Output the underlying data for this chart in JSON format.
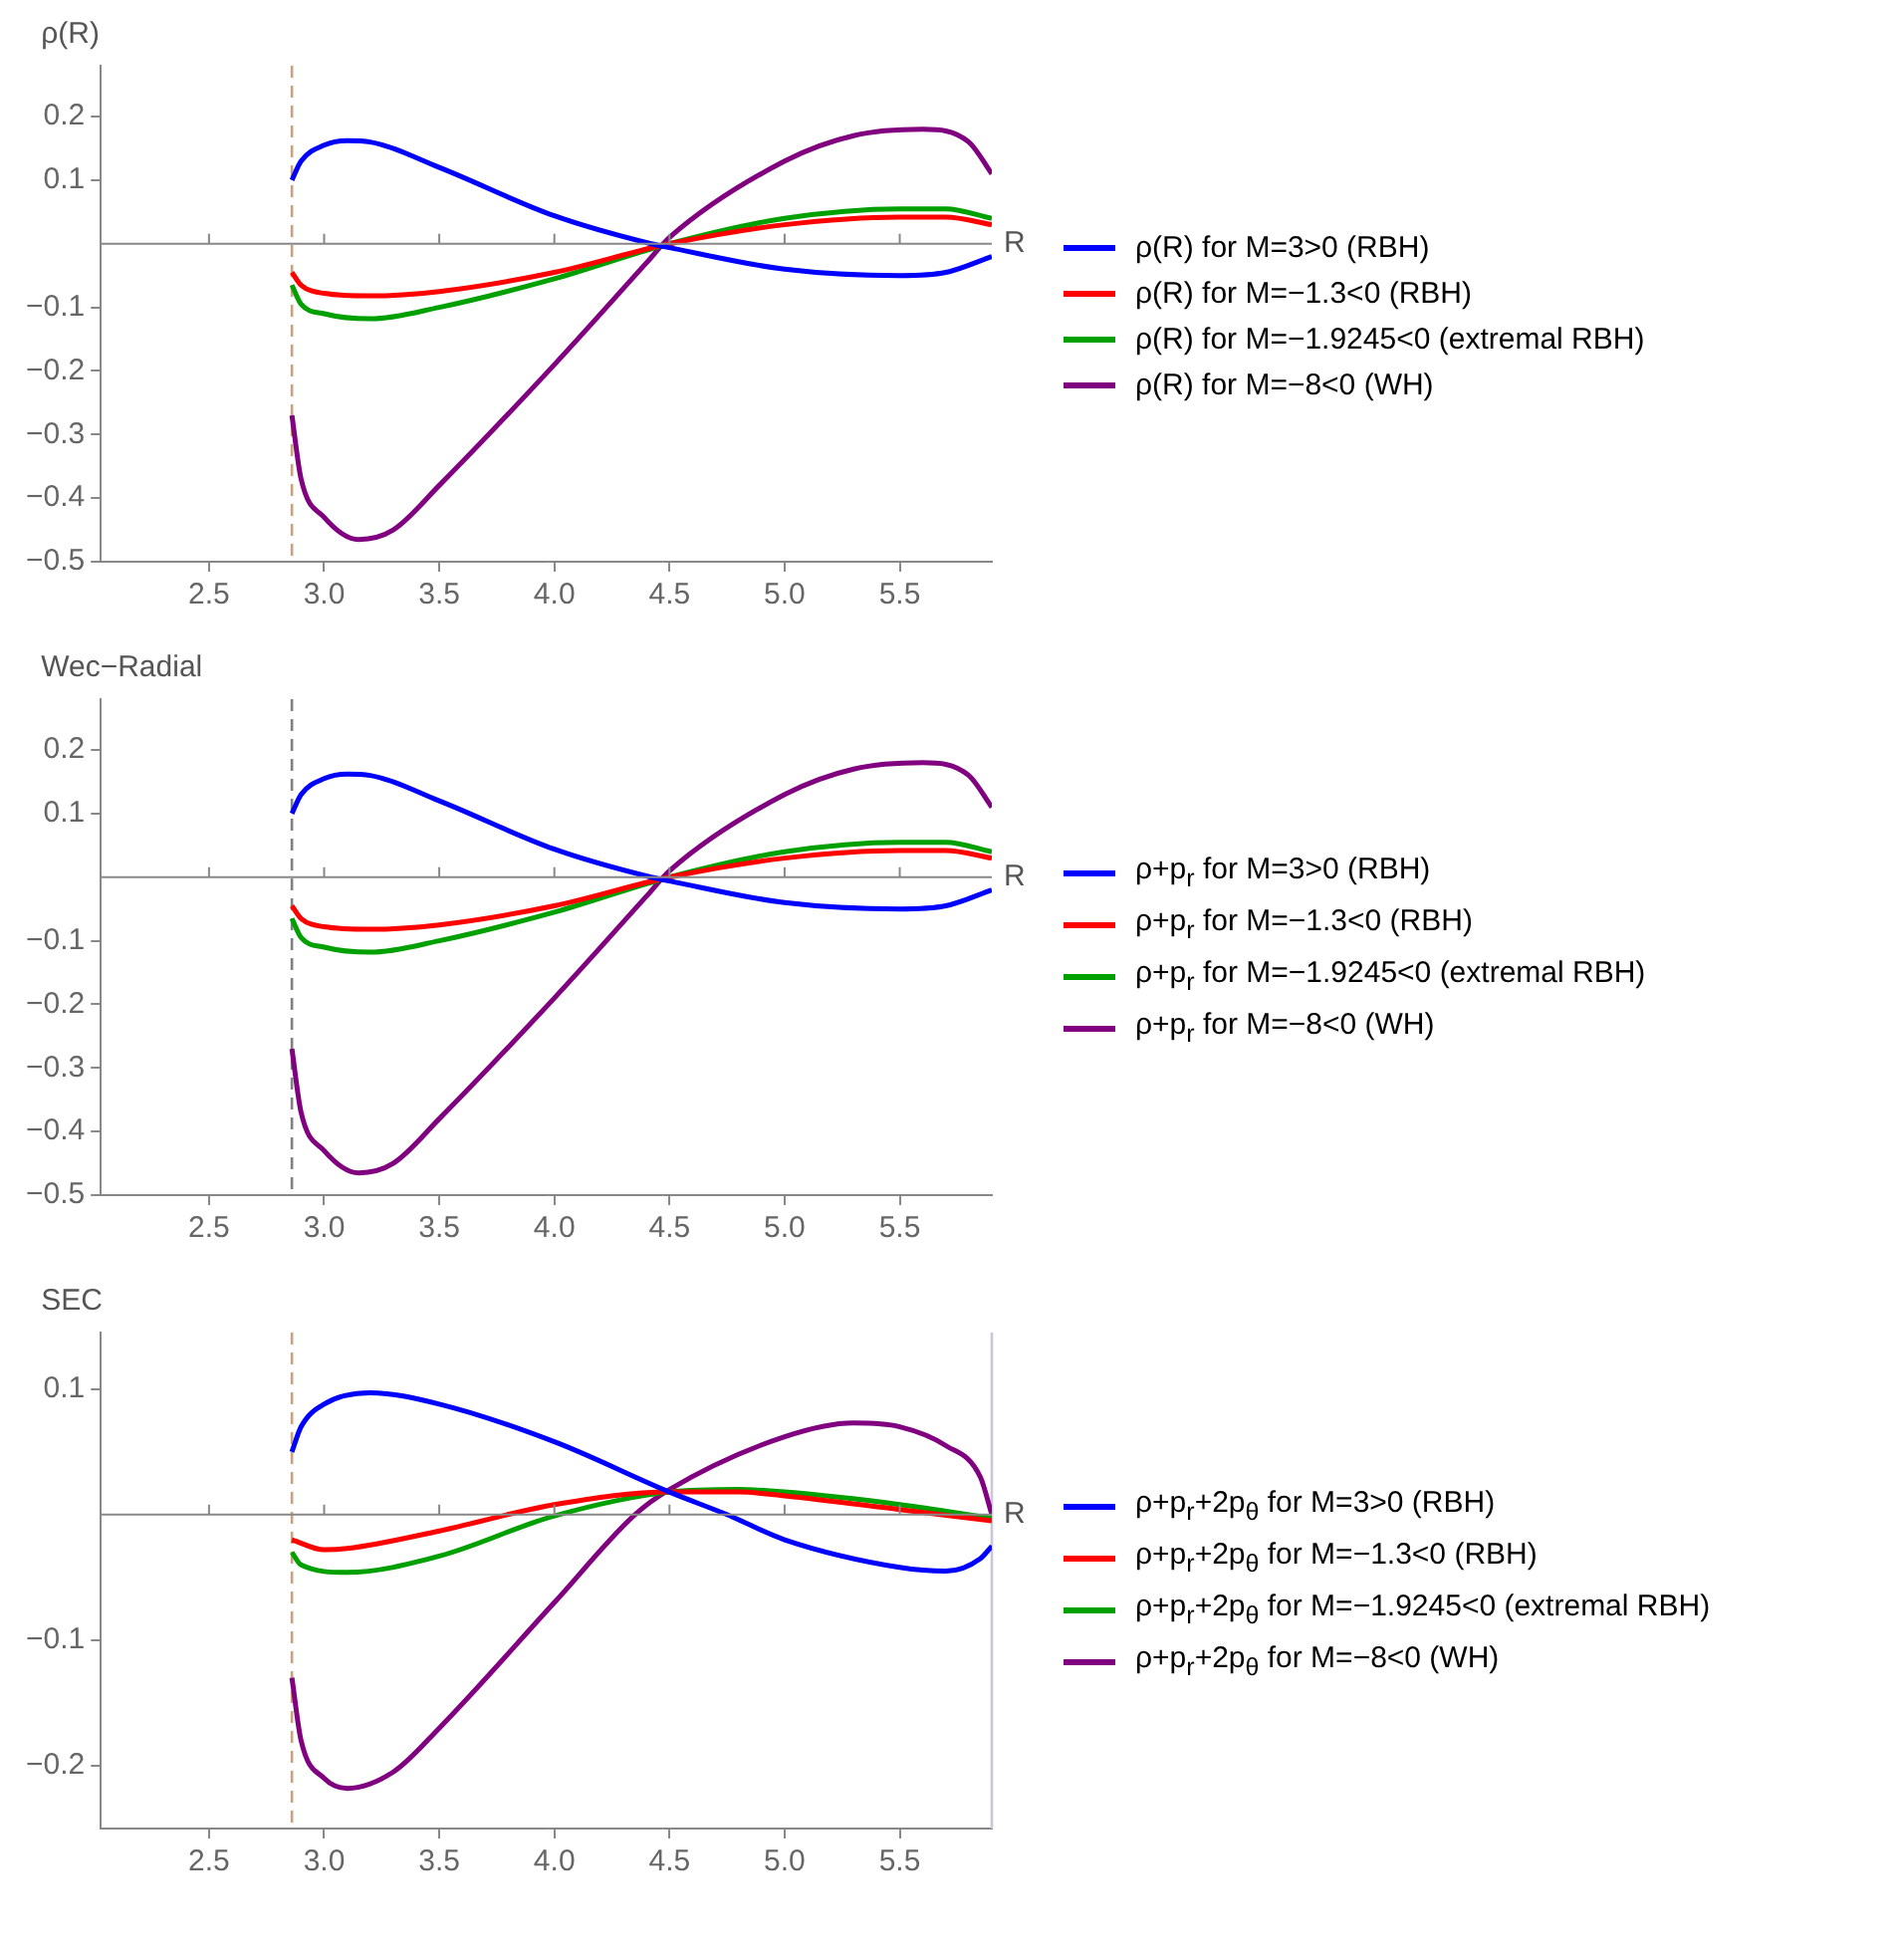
{
  "chart_data": [
    {
      "type": "line",
      "ylabel": "ρ(R)",
      "xlabel": "R",
      "xlim": [
        2.03,
        5.9
      ],
      "ylim": [
        -0.5,
        0.28
      ],
      "xticks": [
        2.5,
        {
          "value": 3,
          "label": "3.0"
        },
        3.5,
        {
          "value": 4,
          "label": "4.0"
        },
        4.5,
        {
          "value": 5,
          "label": "5.0"
        },
        5.5
      ],
      "yticks": [
        -0.5,
        -0.4,
        -0.3,
        -0.2,
        -0.1,
        0.1,
        0.2
      ],
      "legend": "right",
      "ref_lines": [
        {
          "axis": "x",
          "value": 2.86,
          "color": "#c8a27e",
          "line_style": "dashed"
        }
      ],
      "series": [
        {
          "name": "ρ(R) for M=3>0 (RBH)",
          "color": "#0000ff",
          "x": [
            2.86,
            2.9,
            3.0,
            3.1,
            3.2,
            3.5,
            4.0,
            4.42,
            4.5,
            5.0,
            5.5,
            5.7,
            5.9
          ],
          "values": [
            0.1,
            0.13,
            0.155,
            0.162,
            0.16,
            0.12,
            0.044,
            0,
            -0.006,
            -0.04,
            -0.05,
            -0.045,
            -0.02
          ]
        },
        {
          "name": "ρ(R) for M=−1.3<0 (RBH)",
          "color": "#ff0000",
          "x": [
            2.86,
            2.9,
            3.0,
            3.2,
            3.5,
            4.0,
            4.5,
            5.0,
            5.5,
            5.7,
            5.9
          ],
          "values": [
            -0.045,
            -0.065,
            -0.078,
            -0.082,
            -0.075,
            -0.045,
            0,
            0.03,
            0.042,
            0.042,
            0.03
          ]
        },
        {
          "name": "ρ(R) for M=−1.9245<0 (extremal RBH)",
          "color": "#00a000",
          "x": [
            2.86,
            2.9,
            3.0,
            3.2,
            3.5,
            4.0,
            4.5,
            5.0,
            5.5,
            5.7,
            5.9
          ],
          "values": [
            -0.065,
            -0.095,
            -0.11,
            -0.118,
            -0.1,
            -0.055,
            0,
            0.04,
            0.055,
            0.055,
            0.04
          ]
        },
        {
          "name": "ρ(R) for M=−8<0 (WH)",
          "color": "#800080",
          "x": [
            2.86,
            2.9,
            3.0,
            3.15,
            3.3,
            3.5,
            4.0,
            4.4,
            4.5,
            5.0,
            5.3,
            5.6,
            5.8,
            5.9
          ],
          "values": [
            -0.27,
            -0.37,
            -0.43,
            -0.465,
            -0.45,
            -0.38,
            -0.19,
            -0.03,
            0.01,
            0.13,
            0.17,
            0.18,
            0.16,
            0.11
          ]
        }
      ]
    },
    {
      "type": "line",
      "ylabel": "Wec−Radial",
      "xlabel": "R",
      "xlim": [
        2.03,
        5.9
      ],
      "ylim": [
        -0.5,
        0.28
      ],
      "xticks": [
        2.5,
        {
          "value": 3,
          "label": "3.0"
        },
        3.5,
        {
          "value": 4,
          "label": "4.0"
        },
        4.5,
        {
          "value": 5,
          "label": "5.0"
        },
        5.5
      ],
      "yticks": [
        -0.5,
        -0.4,
        -0.3,
        -0.2,
        -0.1,
        0.1,
        0.2
      ],
      "legend": "right",
      "ref_lines": [
        {
          "axis": "x",
          "value": 2.86,
          "color": "#808080",
          "line_style": "dashed"
        }
      ],
      "series": [
        {
          "name": "ρ+p$_{r}$ for M=3>0 (RBH)",
          "color": "#0000ff",
          "x": [
            2.86,
            2.9,
            3.0,
            3.1,
            3.2,
            3.5,
            4.0,
            4.42,
            4.5,
            5.0,
            5.5,
            5.7,
            5.9
          ],
          "values": [
            0.1,
            0.13,
            0.155,
            0.162,
            0.16,
            0.12,
            0.044,
            0,
            -0.006,
            -0.04,
            -0.05,
            -0.045,
            -0.02
          ]
        },
        {
          "name": "ρ+p$_{r}$ for M=−1.3<0 (RBH)",
          "color": "#ff0000",
          "x": [
            2.86,
            2.9,
            3.0,
            3.2,
            3.5,
            4.0,
            4.5,
            5.0,
            5.5,
            5.7,
            5.9
          ],
          "values": [
            -0.045,
            -0.065,
            -0.078,
            -0.082,
            -0.075,
            -0.045,
            0,
            0.03,
            0.042,
            0.042,
            0.03
          ]
        },
        {
          "name": "ρ+p$_{r}$ for M=−1.9245<0 (extremal RBH)",
          "color": "#00a000",
          "x": [
            2.86,
            2.9,
            3.0,
            3.2,
            3.5,
            4.0,
            4.5,
            5.0,
            5.5,
            5.7,
            5.9
          ],
          "values": [
            -0.065,
            -0.095,
            -0.11,
            -0.118,
            -0.1,
            -0.055,
            0,
            0.04,
            0.055,
            0.055,
            0.04
          ]
        },
        {
          "name": "ρ+p$_{r}$ for M=−8<0 (WH)",
          "color": "#800080",
          "x": [
            2.86,
            2.9,
            3.0,
            3.15,
            3.3,
            3.5,
            4.0,
            4.4,
            4.5,
            5.0,
            5.3,
            5.6,
            5.8,
            5.9
          ],
          "values": [
            -0.27,
            -0.37,
            -0.43,
            -0.465,
            -0.45,
            -0.38,
            -0.19,
            -0.03,
            0.01,
            0.13,
            0.17,
            0.18,
            0.16,
            0.11
          ]
        }
      ]
    },
    {
      "type": "line",
      "ylabel": "SEC",
      "xlabel": "R",
      "xlim": [
        2.03,
        5.9
      ],
      "ylim": [
        -0.25,
        0.145
      ],
      "xticks": [
        2.5,
        {
          "value": 3,
          "label": "3.0"
        },
        3.5,
        {
          "value": 4,
          "label": "4.0"
        },
        4.5,
        {
          "value": 5,
          "label": "5.0"
        },
        5.5
      ],
      "yticks": [
        -0.2,
        -0.1,
        0.1
      ],
      "legend": "right",
      "ref_lines": [
        {
          "axis": "x",
          "value": 2.86,
          "color": "#c8a27e",
          "line_style": "dashed"
        },
        {
          "axis": "x",
          "value": 5.9,
          "color": "#c8c8d8",
          "line_style": "solid"
        }
      ],
      "series": [
        {
          "name": "ρ+p$_{r}$+2p$_{θ}$ for M=3>0 (RBH)",
          "color": "#0000ff",
          "x": [
            2.86,
            2.9,
            3.0,
            3.2,
            3.5,
            4.0,
            4.5,
            4.75,
            5.0,
            5.5,
            5.7,
            5.85,
            5.9
          ],
          "values": [
            0.05,
            0.07,
            0.088,
            0.097,
            0.088,
            0.058,
            0.018,
            0,
            -0.02,
            -0.042,
            -0.045,
            -0.035,
            -0.025
          ]
        },
        {
          "name": "ρ+p$_{r}$+2p$_{θ}$ for M=−1.3<0 (RBH)",
          "color": "#ff0000",
          "x": [
            2.86,
            3.0,
            3.1,
            3.5,
            4.0,
            4.5,
            4.8,
            5.0,
            5.5,
            5.9
          ],
          "values": [
            -0.02,
            -0.028,
            -0.027,
            -0.013,
            0.008,
            0.018,
            0.018,
            0.015,
            0.004,
            -0.005
          ]
        },
        {
          "name": "ρ+p$_{r}$+2p$_{θ}$ for M=−1.9245<0 (extremal RBH)",
          "color": "#00a000",
          "x": [
            2.86,
            2.9,
            3.1,
            3.5,
            4.0,
            4.5,
            4.8,
            5.0,
            5.5,
            5.9
          ],
          "values": [
            -0.03,
            -0.04,
            -0.046,
            -0.033,
            -0.001,
            0.018,
            0.02,
            0.018,
            0.008,
            -0.003
          ]
        },
        {
          "name": "ρ+p$_{r}$+2p$_{θ}$ for M=−8<0 (WH)",
          "color": "#800080",
          "x": [
            2.86,
            2.9,
            3.0,
            3.1,
            3.3,
            3.5,
            4.0,
            4.35,
            4.5,
            5.0,
            5.3,
            5.5,
            5.7,
            5.85,
            5.9
          ],
          "values": [
            -0.13,
            -0.18,
            -0.21,
            -0.218,
            -0.205,
            -0.17,
            -0.07,
            0,
            0.02,
            0.062,
            0.073,
            0.07,
            0.055,
            0.03,
            0
          ]
        }
      ]
    }
  ]
}
